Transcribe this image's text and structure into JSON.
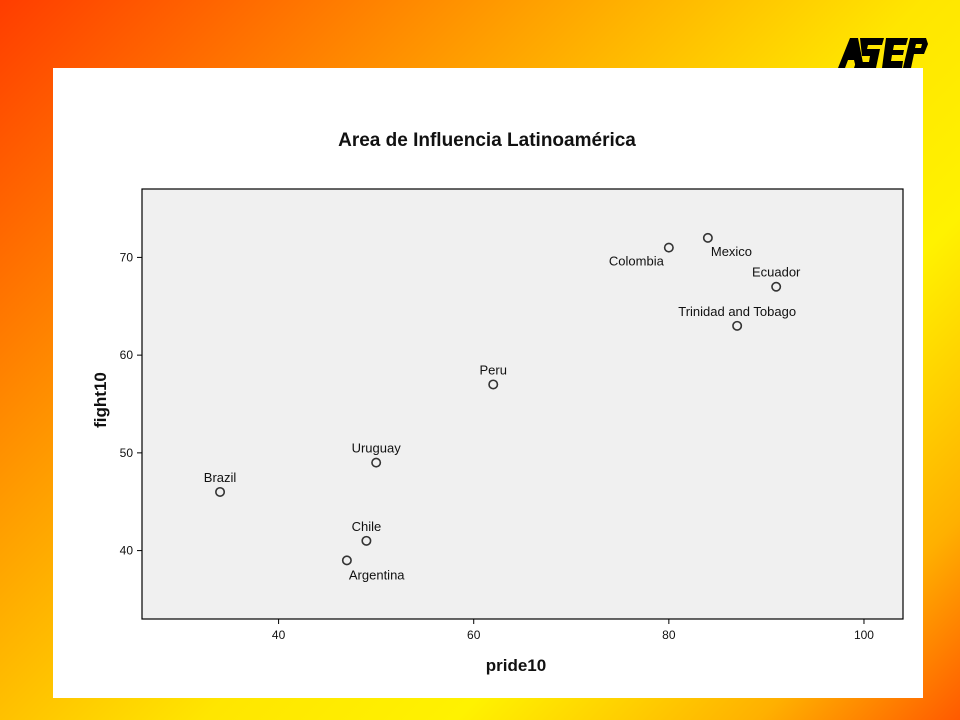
{
  "logo_text": "ASEP",
  "chart_data": {
    "type": "scatter",
    "title": "Area de Influencia Latinoamérica",
    "xlabel": "pride10",
    "ylabel": "fight10",
    "xlim": [
      26,
      104
    ],
    "ylim": [
      33,
      77
    ],
    "xticks": [
      40,
      60,
      80,
      100
    ],
    "yticks": [
      40,
      50,
      60,
      70
    ],
    "grid": false,
    "plot_background": "#f0f0f0",
    "marker_color": "#333333",
    "points": [
      {
        "label": "Brazil",
        "x": 34,
        "y": 46,
        "label_pos": "above"
      },
      {
        "label": "Uruguay",
        "x": 50,
        "y": 49,
        "label_pos": "above"
      },
      {
        "label": "Chile",
        "x": 49,
        "y": 41,
        "label_pos": "above"
      },
      {
        "label": "Argentina",
        "x": 47,
        "y": 39,
        "label_pos": "below"
      },
      {
        "label": "Peru",
        "x": 62,
        "y": 57,
        "label_pos": "above"
      },
      {
        "label": "Colombia",
        "x": 80,
        "y": 71,
        "label_pos": "below-left"
      },
      {
        "label": "Mexico",
        "x": 84,
        "y": 72,
        "label_pos": "below"
      },
      {
        "label": "Ecuador",
        "x": 91,
        "y": 67,
        "label_pos": "above"
      },
      {
        "label": "Trinidad and Tobago",
        "x": 87,
        "y": 63,
        "label_pos": "above"
      }
    ]
  }
}
